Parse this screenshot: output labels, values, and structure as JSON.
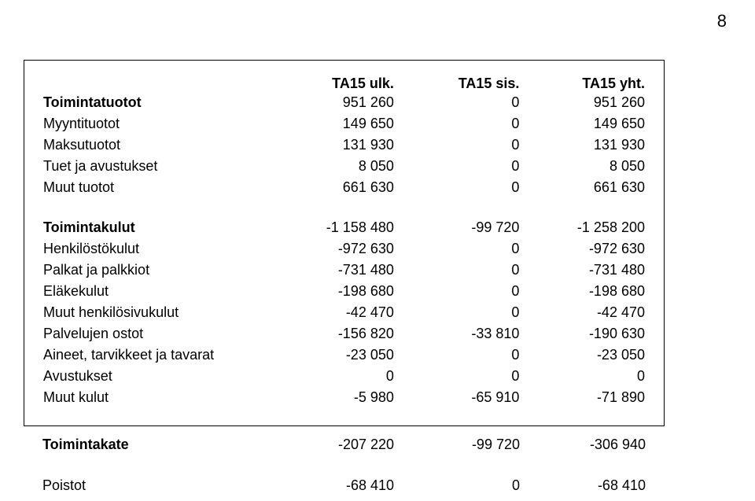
{
  "page_number": "8",
  "headers": {
    "c1": "TA15 ulk.",
    "c2": "TA15 sis.",
    "c3": "TA15 yht."
  },
  "income": {
    "title": "Toimintatuotot",
    "c1": "951 260",
    "c2": "0",
    "c3": "951 260",
    "rows": [
      {
        "label": "Myyntituotot",
        "c1": "149 650",
        "c2": "0",
        "c3": "149 650"
      },
      {
        "label": "Maksutuotot",
        "c1": "131 930",
        "c2": "0",
        "c3": "131 930"
      },
      {
        "label": "Tuet ja avustukset",
        "c1": "8 050",
        "c2": "0",
        "c3": "8 050"
      },
      {
        "label": "Muut tuotot",
        "c1": "661 630",
        "c2": "0",
        "c3": "661 630"
      }
    ]
  },
  "expenses": {
    "title": "Toimintakulut",
    "c1": "-1 158 480",
    "c2": "-99 720",
    "c3": "-1 258 200",
    "rows": [
      {
        "label": "Henkilöstökulut",
        "c1": "-972 630",
        "c2": "0",
        "c3": "-972 630"
      },
      {
        "label": "Palkat ja palkkiot",
        "c1": "-731 480",
        "c2": "0",
        "c3": "-731 480"
      },
      {
        "label": "Eläkekulut",
        "c1": "-198 680",
        "c2": "0",
        "c3": "-198 680"
      },
      {
        "label": "Muut henkilösivukulut",
        "c1": "-42 470",
        "c2": "0",
        "c3": "-42 470"
      },
      {
        "label": "Palvelujen ostot",
        "c1": "-156 820",
        "c2": "-33 810",
        "c3": "-190 630"
      },
      {
        "label": "Aineet, tarvikkeet ja tavarat",
        "c1": "-23 050",
        "c2": "0",
        "c3": "-23 050"
      },
      {
        "label": "Avustukset",
        "c1": "0",
        "c2": "0",
        "c3": "0"
      },
      {
        "label": "Muut kulut",
        "c1": "-5 980",
        "c2": "-65 910",
        "c3": "-71 890"
      }
    ]
  },
  "toimintakate": {
    "label": "Toimintakate",
    "c1": "-207 220",
    "c2": "-99 720",
    "c3": "-306 940"
  },
  "poistot": {
    "label": "Poistot",
    "c1": "-68 410",
    "c2": "0",
    "c3": "-68 410"
  }
}
